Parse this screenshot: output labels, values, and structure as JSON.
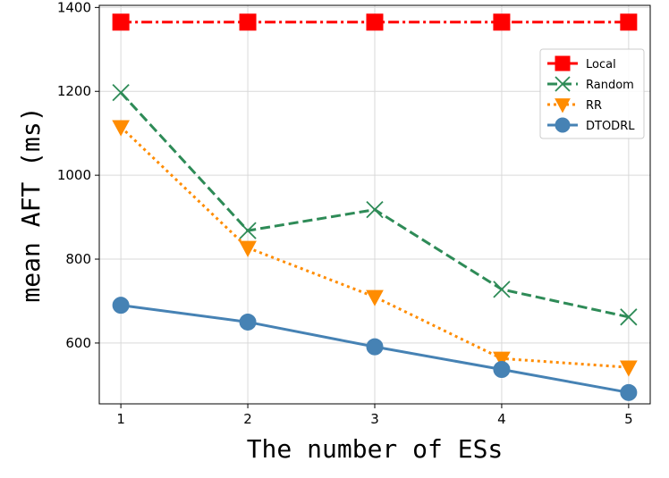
{
  "chart_data": {
    "type": "line",
    "xlabel": "The number of ESs",
    "ylabel": "mean AFT (ms)",
    "x": [
      1,
      2,
      3,
      4,
      5
    ],
    "xlim": [
      0.83,
      5.17
    ],
    "ylim": [
      455,
      1405
    ],
    "xticks": [
      1,
      2,
      3,
      4,
      5
    ],
    "yticks": [
      600,
      800,
      1000,
      1200,
      1400
    ],
    "grid": true,
    "legend_position": "upper-right",
    "series": [
      {
        "name": "Local",
        "values": [
          1365,
          1365,
          1365,
          1365,
          1365
        ],
        "color": "#ff0000",
        "dash": "dashdot",
        "marker": "square"
      },
      {
        "name": "Random",
        "values": [
          1197,
          868,
          918,
          728,
          662
        ],
        "color": "#2e8b57",
        "dash": "dashed",
        "marker": "x"
      },
      {
        "name": "RR",
        "values": [
          1115,
          827,
          710,
          563,
          542
        ],
        "color": "#ff8c00",
        "dash": "dotted",
        "marker": "triangle-down"
      },
      {
        "name": "DTODRL",
        "values": [
          690,
          650,
          591,
          537,
          482
        ],
        "color": "#4682b4",
        "dash": "solid",
        "marker": "circle"
      }
    ]
  }
}
